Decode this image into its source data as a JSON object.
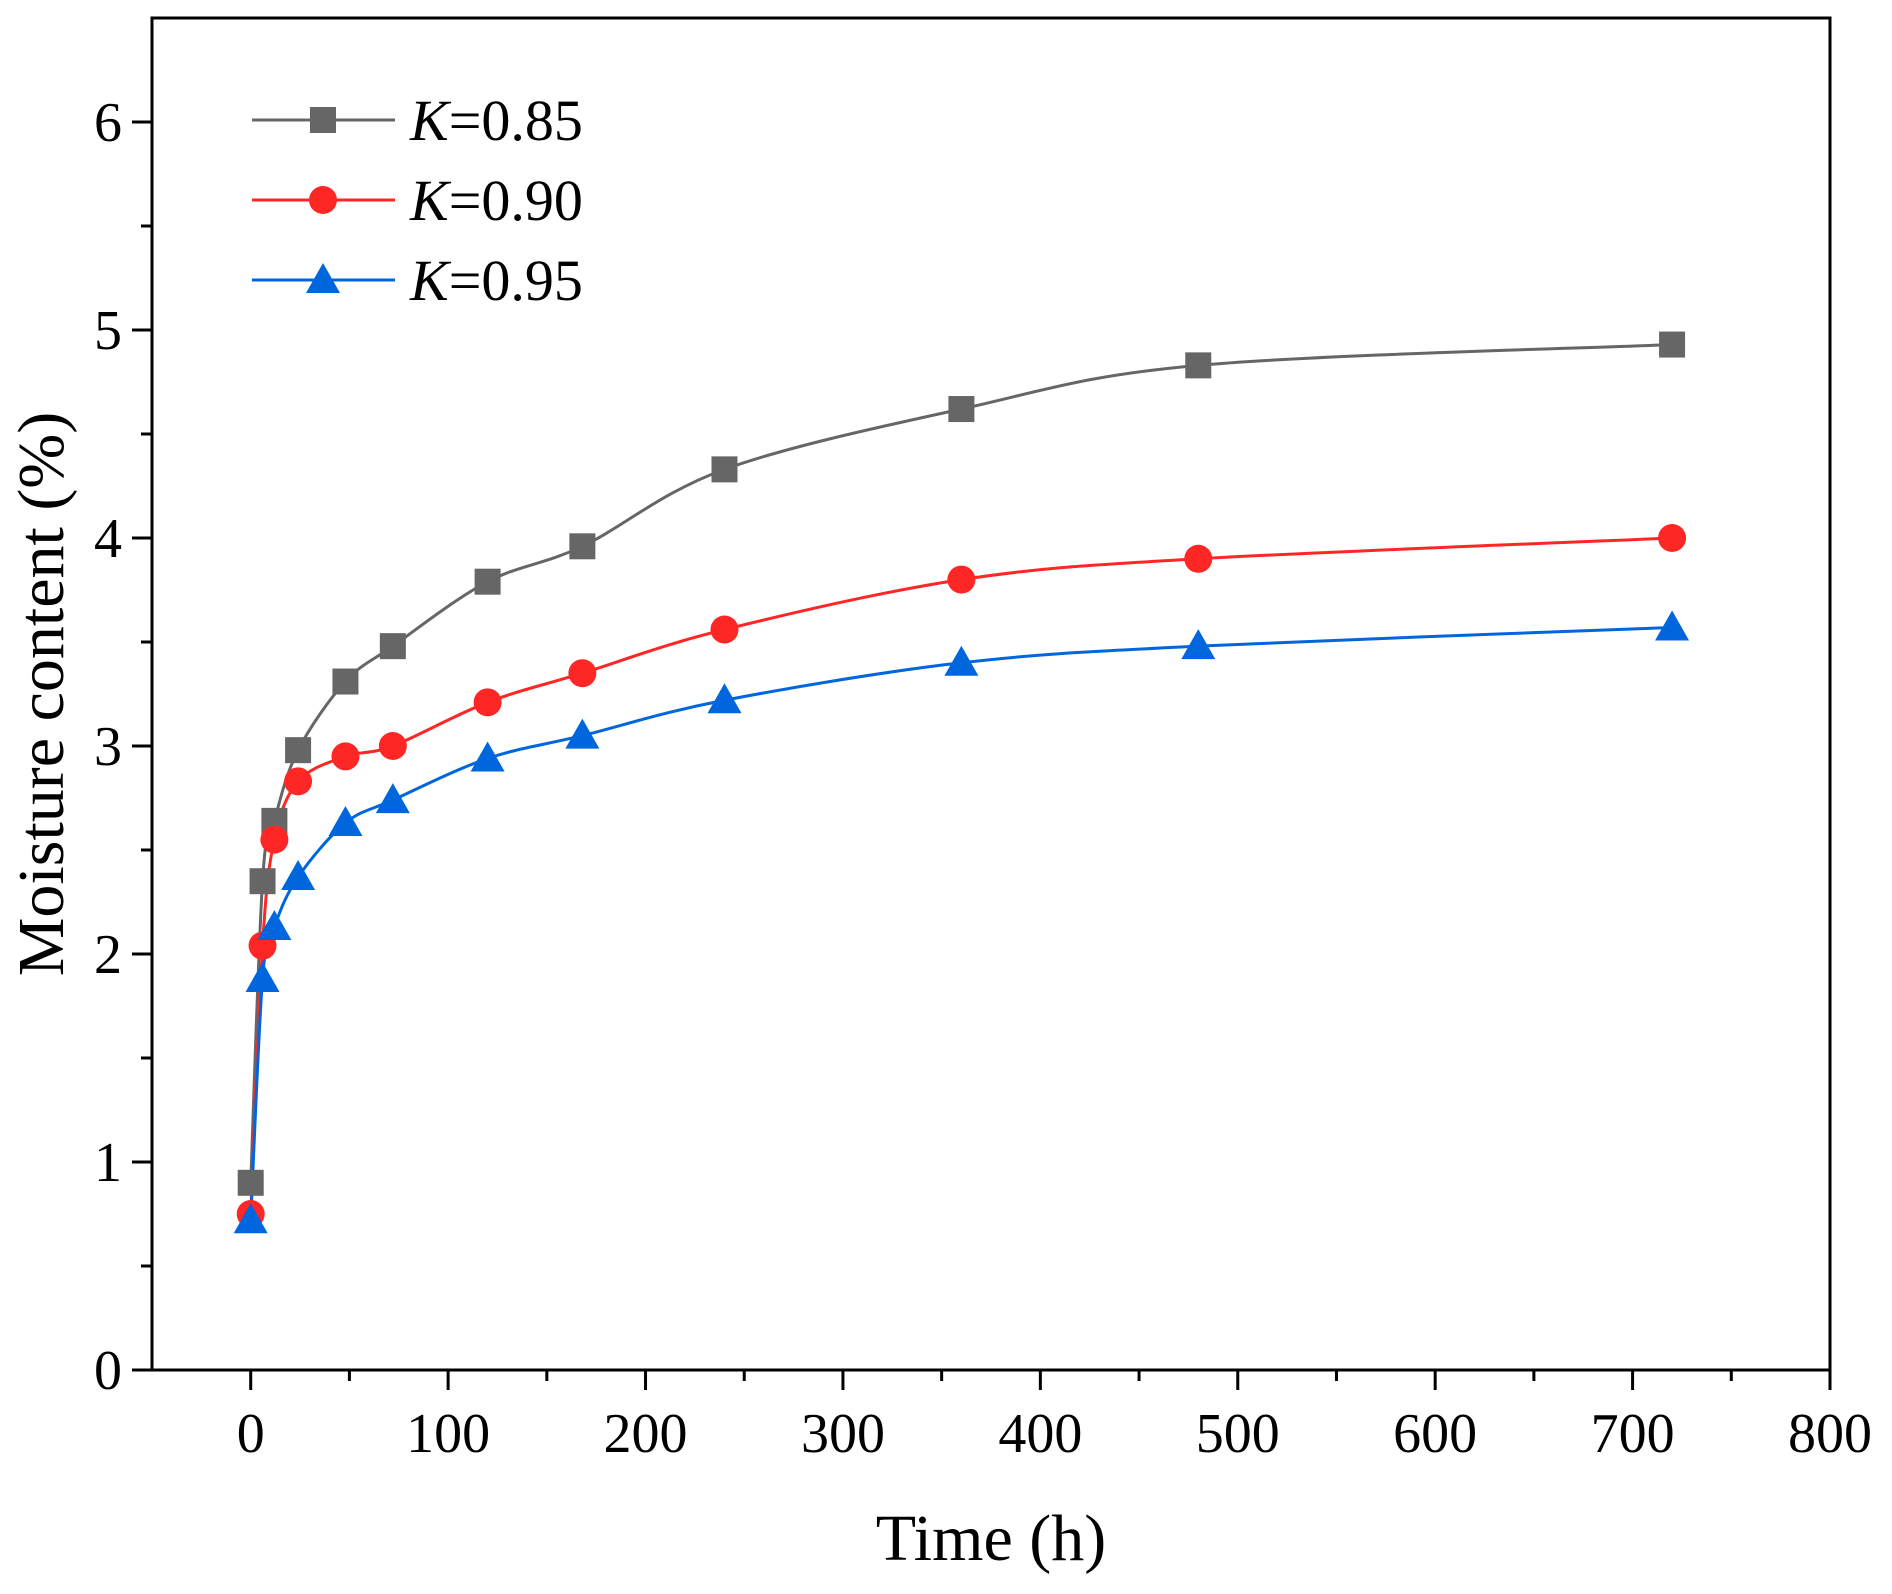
{
  "chart_data": {
    "type": "line",
    "title": "",
    "xlabel": "Time (h)",
    "ylabel": "Moisture content (%)",
    "xlim": [
      -50,
      800
    ],
    "ylim": [
      0,
      6.5
    ],
    "x_ticks": [
      0,
      100,
      200,
      300,
      400,
      500,
      600,
      700,
      800
    ],
    "y_ticks": [
      0,
      1,
      2,
      3,
      4,
      5,
      6
    ],
    "grid": false,
    "legend_position": "top-left",
    "series": [
      {
        "name": "K=0.85",
        "legend_var": "K",
        "legend_value": "=0.85",
        "color": "#666666",
        "marker": "square",
        "x": [
          0,
          6,
          12,
          24,
          48,
          72,
          120,
          168,
          240,
          360,
          480,
          720
        ],
        "y": [
          0.9,
          2.35,
          2.64,
          2.98,
          3.31,
          3.48,
          3.79,
          3.96,
          4.33,
          4.62,
          4.83,
          4.93
        ]
      },
      {
        "name": "K=0.90",
        "legend_var": "K",
        "legend_value": "=0.90",
        "color": "#ff2626",
        "marker": "circle",
        "x": [
          0,
          6,
          12,
          24,
          48,
          72,
          120,
          168,
          240,
          360,
          480,
          720
        ],
        "y": [
          0.75,
          2.04,
          2.55,
          2.83,
          2.95,
          3.0,
          3.21,
          3.35,
          3.56,
          3.8,
          3.9,
          4.0
        ]
      },
      {
        "name": "K=0.95",
        "legend_var": "K",
        "legend_value": "=0.95",
        "color": "#0066dd",
        "marker": "triangle",
        "x": [
          0,
          6,
          12,
          24,
          48,
          72,
          120,
          168,
          240,
          360,
          480,
          720
        ],
        "y": [
          0.72,
          1.88,
          2.13,
          2.37,
          2.63,
          2.74,
          2.94,
          3.05,
          3.22,
          3.4,
          3.48,
          3.57
        ]
      }
    ]
  }
}
